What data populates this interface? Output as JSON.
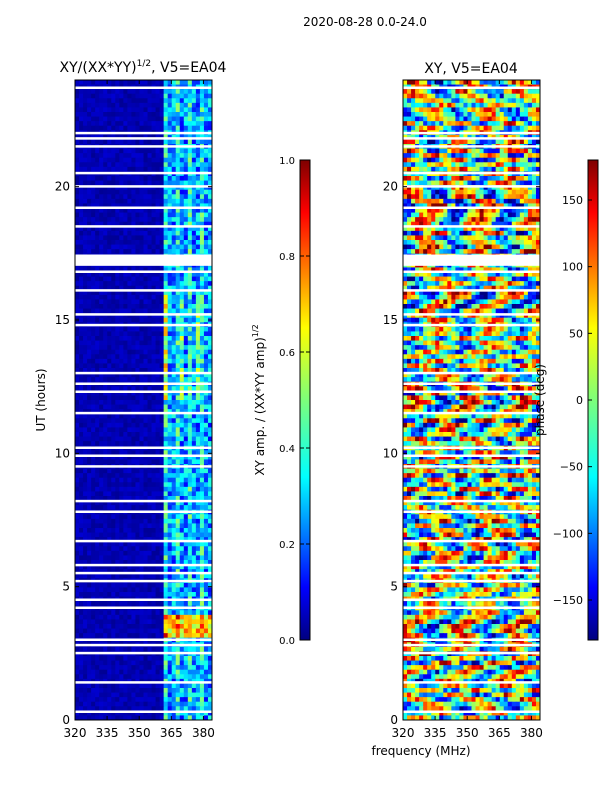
{
  "figure": {
    "suptitle": "2020-08-28 0.0-24.0",
    "shared_xlabel": "frequency (MHz)"
  },
  "chart_data": [
    {
      "type": "heatmap",
      "title_prefix": "XY/(XX*YY)",
      "title_sup": "1/2",
      "title_suffix": ", V5=EA04",
      "xlabel": "frequency (MHz)",
      "ylabel": "UT (hours)",
      "xlim": [
        320,
        384
      ],
      "ylim": [
        0,
        24
      ],
      "xticks": [
        320,
        335,
        350,
        365,
        380
      ],
      "yticks": [
        0,
        5,
        10,
        15,
        20
      ],
      "colorbar": {
        "label_prefix": "XY amp. / (XX*YY amp)",
        "label_sup": "1/2",
        "range": [
          0.0,
          1.0
        ],
        "ticks": [
          "0.0",
          "0.2",
          "0.4",
          "0.6",
          "0.8",
          "1.0"
        ],
        "colormap": "jet"
      }
    },
    {
      "type": "heatmap",
      "title": "XY, V5=EA04",
      "xlabel": "frequency (MHz)",
      "ylabel": "",
      "xlim": [
        320,
        384
      ],
      "ylim": [
        0,
        24
      ],
      "xticks": [
        320,
        335,
        350,
        365,
        380
      ],
      "yticks": [
        0,
        5,
        10,
        15,
        20
      ],
      "colorbar": {
        "label": "phase (deg)",
        "range": [
          -180,
          180
        ],
        "ticks": [
          "−150",
          "−100",
          "−50",
          "0",
          "50",
          "100",
          "150"
        ],
        "tick_values": [
          -150,
          -100,
          -50,
          0,
          50,
          100,
          150
        ],
        "colormap": "jet"
      }
    }
  ],
  "colors": {
    "jet_dark_blue": "#00007f",
    "jet_blue": "#0000ff",
    "jet_cyan": "#00ffff",
    "jet_yellow": "#ffff00",
    "jet_red": "#ff0000",
    "jet_dark_red": "#7f0000",
    "flag_gap": "#ffffff"
  }
}
